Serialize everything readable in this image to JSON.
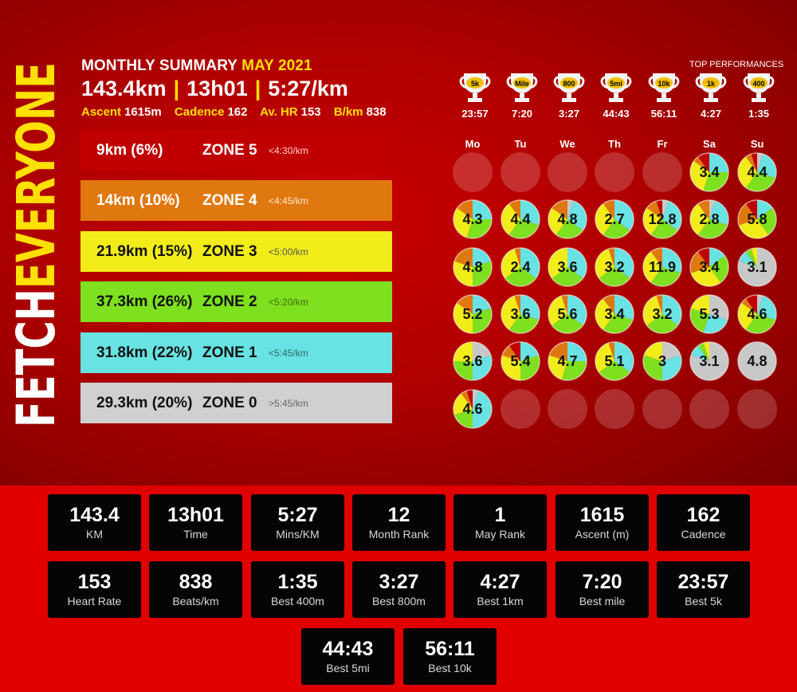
{
  "brand": {
    "part1": "FETCH",
    "part2": "EVERYONE"
  },
  "summary": {
    "title": "MONTHLY SUMMARY",
    "month": "MAY 2021",
    "distance": "143.4km",
    "sep1": "|",
    "time": "13h01",
    "sep2": "|",
    "pace": "5:27/km",
    "ascent_label": "Ascent",
    "ascent": "1615m",
    "cadence_label": "Cadence",
    "cadence": "162",
    "hr_label": "Av. HR",
    "hr": "153",
    "bkm_label": "B/km",
    "bkm": "838"
  },
  "zones": [
    {
      "amount": "9km (6%)",
      "name": "ZONE 5",
      "pace": "<4:30/km",
      "color": "#c00000",
      "text": "#ffffff",
      "pacecolor": "#ffd0d0"
    },
    {
      "amount": "14km (10%)",
      "name": "ZONE 4",
      "pace": "<4:45/km",
      "color": "#e07810",
      "text": "#ffffff",
      "pacecolor": "#ffe8d0"
    },
    {
      "amount": "21.9km (15%)",
      "name": "ZONE 3",
      "pace": "<5:00/km",
      "color": "#f2ec1a",
      "text": "#111111",
      "pacecolor": "#555555"
    },
    {
      "amount": "37.3km (26%)",
      "name": "ZONE 2",
      "pace": "<5:20/km",
      "color": "#7ee01e",
      "text": "#111111",
      "pacecolor": "#446611"
    },
    {
      "amount": "31.8km (22%)",
      "name": "ZONE 1",
      "pace": "<5:45/km",
      "color": "#68e2e2",
      "text": "#111111",
      "pacecolor": "#336666"
    },
    {
      "amount": "29.3km (20%)",
      "name": "ZONE 0",
      "pace": ">5:45/km",
      "color": "#d0d0d0",
      "text": "#111111",
      "pacecolor": "#666666"
    }
  ],
  "top_performances": {
    "title": "TOP PERFORMANCES",
    "items": [
      {
        "label": "5k",
        "time": "23:57"
      },
      {
        "label": "Mile",
        "time": "7:20"
      },
      {
        "label": "800",
        "time": "3:27"
      },
      {
        "label": "5mi",
        "time": "44:43"
      },
      {
        "label": "10k",
        "time": "56:11"
      },
      {
        "label": "1k",
        "time": "4:27"
      },
      {
        "label": "400",
        "time": "1:35"
      }
    ]
  },
  "calendar": {
    "days": [
      "Mo",
      "Tu",
      "We",
      "Th",
      "Fr",
      "Sa",
      "Su"
    ],
    "zone_colors": [
      "#c8c8c8",
      "#68e2e2",
      "#7ee01e",
      "#f2ec1a",
      "#e07810",
      "#c00000"
    ],
    "weeks": [
      [
        null,
        null,
        null,
        null,
        null,
        {
          "v": "3.4",
          "z": [
            0,
            0.25,
            0.3,
            0.3,
            0.05,
            0.1
          ]
        },
        {
          "v": "4.4",
          "z": [
            0.05,
            0.25,
            0.3,
            0.3,
            0.05,
            0.05
          ]
        }
      ],
      [
        {
          "v": "4.3",
          "z": [
            0,
            0.25,
            0.3,
            0.3,
            0.15,
            0
          ]
        },
        {
          "v": "4.4",
          "z": [
            0,
            0.3,
            0.3,
            0.3,
            0.1,
            0
          ]
        },
        {
          "v": "4.8",
          "z": [
            0.05,
            0.3,
            0.25,
            0.25,
            0.15,
            0
          ]
        },
        {
          "v": "2.7",
          "z": [
            0,
            0.35,
            0.25,
            0.3,
            0.1,
            0
          ]
        },
        {
          "v": "12.8",
          "z": [
            0.05,
            0.3,
            0.25,
            0.25,
            0.1,
            0.05
          ]
        },
        {
          "v": "2.8",
          "z": [
            0.05,
            0.25,
            0.3,
            0.3,
            0.1,
            0
          ]
        },
        {
          "v": "5.8",
          "z": [
            0,
            0.15,
            0.25,
            0.3,
            0.2,
            0.1
          ]
        }
      ],
      [
        {
          "v": "4.8",
          "z": [
            0,
            0.2,
            0.3,
            0.3,
            0.2,
            0
          ]
        },
        {
          "v": "2.4",
          "z": [
            0,
            0.35,
            0.3,
            0.3,
            0.05,
            0
          ]
        },
        {
          "v": "3.6",
          "z": [
            0,
            0.35,
            0.3,
            0.35,
            0,
            0
          ]
        },
        {
          "v": "3.2",
          "z": [
            0,
            0.35,
            0.3,
            0.3,
            0.05,
            0
          ]
        },
        {
          "v": "11.9",
          "z": [
            0,
            0.3,
            0.3,
            0.3,
            0.1,
            0
          ]
        },
        {
          "v": "3.4",
          "z": [
            0,
            0.15,
            0.25,
            0.3,
            0.2,
            0.1
          ]
        },
        {
          "v": "3.1",
          "z": [
            0.8,
            0.1,
            0.05,
            0.05,
            0,
            0
          ]
        }
      ],
      [
        {
          "v": "5.2",
          "z": [
            0,
            0.2,
            0.3,
            0.35,
            0.15,
            0
          ]
        },
        {
          "v": "3.6",
          "z": [
            0,
            0.3,
            0.3,
            0.35,
            0.05,
            0
          ]
        },
        {
          "v": "5.6",
          "z": [
            0,
            0.35,
            0.3,
            0.3,
            0.05,
            0
          ]
        },
        {
          "v": "3.4",
          "z": [
            0,
            0.3,
            0.3,
            0.3,
            0.1,
            0
          ]
        },
        {
          "v": "3.2",
          "z": [
            0,
            0.35,
            0.3,
            0.3,
            0.05,
            0
          ]
        },
        {
          "v": "5.3",
          "z": [
            0.3,
            0.25,
            0.25,
            0.2,
            0,
            0
          ]
        },
        {
          "v": "4.6",
          "z": [
            0.05,
            0.25,
            0.3,
            0.25,
            0.05,
            0.1
          ]
        }
      ],
      [
        {
          "v": "3.6",
          "z": [
            0.2,
            0.3,
            0.25,
            0.25,
            0,
            0
          ]
        },
        {
          "v": "5.4",
          "z": [
            0,
            0.2,
            0.3,
            0.3,
            0.1,
            0.1
          ]
        },
        {
          "v": "4.7",
          "z": [
            0,
            0.25,
            0.3,
            0.25,
            0.2,
            0
          ]
        },
        {
          "v": "5.1",
          "z": [
            0,
            0.35,
            0.3,
            0.3,
            0.05,
            0
          ]
        },
        {
          "v": "3",
          "z": [
            0.2,
            0.3,
            0.3,
            0.2,
            0,
            0
          ]
        },
        {
          "v": "3.1",
          "z": [
            0.8,
            0.1,
            0.05,
            0.05,
            0,
            0
          ]
        },
        {
          "v": "4.8",
          "z": [
            1,
            0,
            0,
            0,
            0,
            0
          ]
        }
      ],
      [
        {
          "v": "4.6",
          "z": [
            0.05,
            0.45,
            0.2,
            0.2,
            0.05,
            0.05
          ]
        },
        null,
        null,
        null,
        null,
        null,
        null
      ]
    ]
  },
  "cards": [
    {
      "value": "143.4",
      "label": "KM"
    },
    {
      "value": "13h01",
      "label": "Time"
    },
    {
      "value": "5:27",
      "label": "Mins/KM"
    },
    {
      "value": "12",
      "label": "Month Rank"
    },
    {
      "value": "1",
      "label": "May Rank"
    },
    {
      "value": "1615",
      "label": "Ascent (m)"
    },
    {
      "value": "162",
      "label": "Cadence"
    },
    {
      "value": "153",
      "label": "Heart Rate"
    },
    {
      "value": "838",
      "label": "Beats/km"
    },
    {
      "value": "1:35",
      "label": "Best 400m"
    },
    {
      "value": "3:27",
      "label": "Best 800m"
    },
    {
      "value": "4:27",
      "label": "Best 1km"
    },
    {
      "value": "7:20",
      "label": "Best mile"
    },
    {
      "value": "23:57",
      "label": "Best 5k"
    },
    {
      "value": "44:43",
      "label": "Best 5mi"
    },
    {
      "value": "56:11",
      "label": "Best 10k"
    }
  ]
}
